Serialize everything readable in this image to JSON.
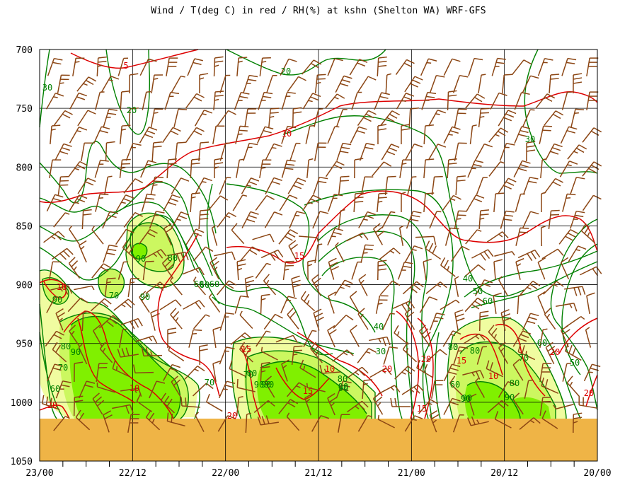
{
  "title": "Wind / T(deg C) in red / RH(%) at kshn (Shelton WA)  WRF-GFS",
  "chart_data": {
    "type": "time-height cross section",
    "title": "Wind / T(deg C) in red / RH(%) at kshn (Shelton WA)  WRF-GFS",
    "x_tick_labels": [
      "23/00",
      "22/12",
      "22/00",
      "21/12",
      "21/00",
      "20/12",
      "20/00"
    ],
    "y_tick_labels": [
      "700",
      "750",
      "800",
      "850",
      "900",
      "950",
      "1000",
      "1050"
    ],
    "y_values_hPa": [
      700,
      750,
      800,
      850,
      900,
      950,
      1000,
      1050
    ],
    "ylim": [
      700,
      1050
    ],
    "y_inverted": true,
    "grid": true,
    "colors": {
      "temperature": "#dd0000",
      "rh": "#008000",
      "wind": "#8b4513",
      "ground": "#efb446",
      "rh_fill_70": "#f0fca0",
      "rh_fill_80": "#ccf760",
      "rh_fill_90": "#80f000"
    },
    "temperature_labels": [
      "5",
      "10",
      "10",
      "15",
      "10",
      "15",
      "20",
      "15",
      "10",
      "20",
      "20",
      "15",
      "15",
      "10",
      "20",
      "20",
      "20"
    ],
    "rh_labels": [
      "30",
      "20",
      "20",
      "30",
      "90",
      "80",
      "90",
      "70",
      "90",
      "60",
      "80",
      "90",
      "70",
      "60",
      "60",
      "60",
      "40",
      "50",
      "60",
      "70",
      "80",
      "80",
      "90",
      "90",
      "80",
      "90",
      "30",
      "40",
      "60",
      "70",
      "80",
      "80",
      "90",
      "90",
      "60",
      "70",
      "50",
      "80",
      "90",
      "70",
      "90"
    ]
  }
}
